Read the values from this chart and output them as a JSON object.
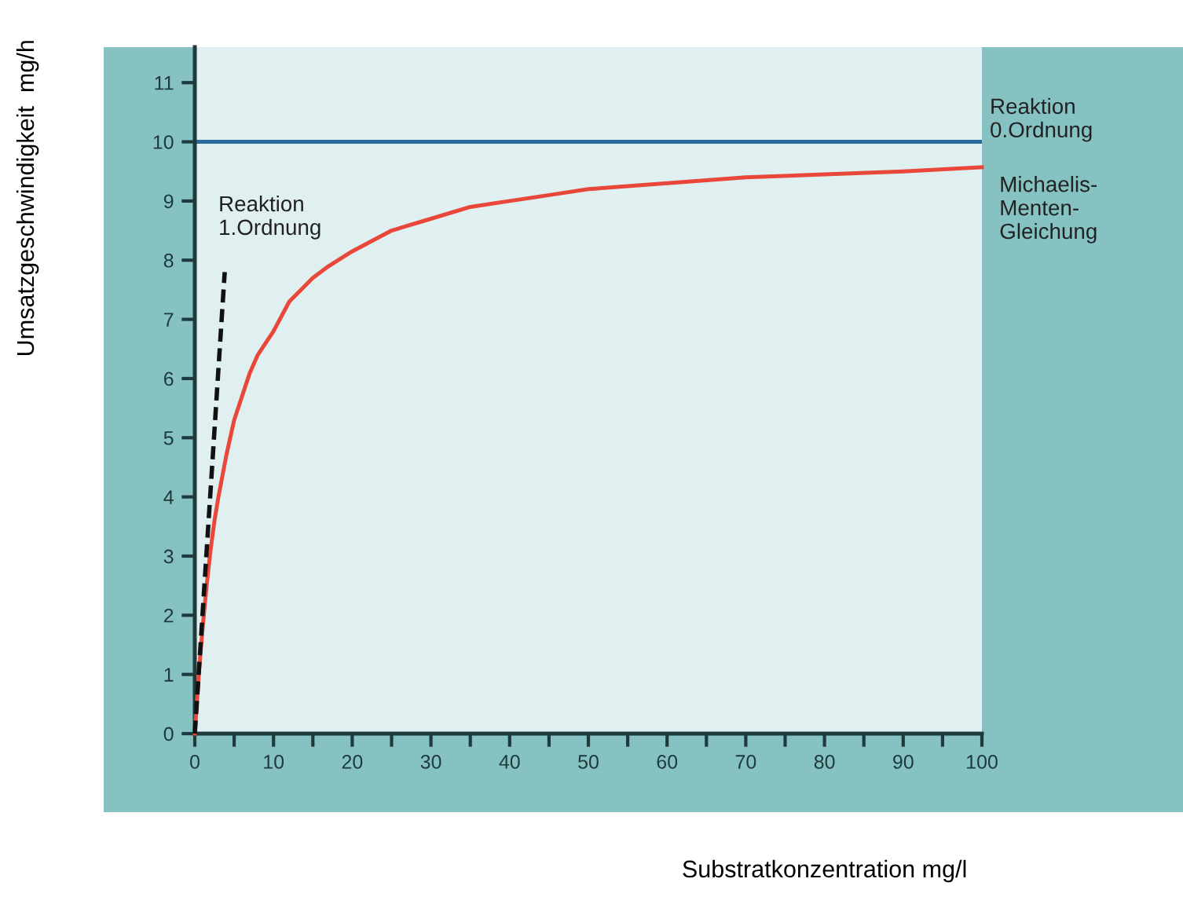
{
  "chart_data": {
    "type": "line",
    "xlabel": "Substratkonzentration mg/l",
    "ylabel": "Umsatzgeschwindigkeit  mg/h",
    "xlim": [
      0,
      100
    ],
    "ylim": [
      0,
      11.6
    ],
    "xticks": [
      0,
      {
        "value": 5,
        "label": null
      },
      10,
      {
        "value": 15,
        "label": null
      },
      20,
      {
        "value": 25,
        "label": null
      },
      30,
      {
        "value": 35,
        "label": null
      },
      40,
      {
        "value": 45,
        "label": null
      },
      50,
      {
        "value": 55,
        "label": null
      },
      60,
      {
        "value": 65,
        "label": null
      },
      70,
      {
        "value": 75,
        "label": null
      },
      80,
      {
        "value": 85,
        "label": null
      },
      90,
      {
        "value": 95,
        "label": null
      },
      100
    ],
    "yticks": [
      0,
      1,
      2,
      3,
      4,
      5,
      6,
      7,
      8,
      9,
      10,
      11
    ],
    "grid": false,
    "legend": false,
    "marker": "none",
    "series": [
      {
        "color": "#e8473a",
        "line_style": "solid",
        "x": [
          0,
          0.5,
          1,
          1.5,
          2,
          2.5,
          3,
          4,
          5,
          6,
          7,
          8,
          10,
          12,
          15,
          17,
          20,
          25,
          30,
          35,
          40,
          45,
          50,
          60,
          70,
          80,
          90,
          100
        ],
        "values": [
          0,
          1.0,
          1.8,
          2.5,
          3.1,
          3.6,
          4.0,
          4.7,
          5.3,
          5.7,
          6.1,
          6.4,
          6.8,
          7.3,
          7.7,
          7.9,
          8.15,
          8.5,
          8.7,
          8.9,
          9.0,
          9.1,
          9.2,
          9.3,
          9.4,
          9.45,
          9.5,
          9.57
        ]
      },
      {
        "color": "#111111",
        "line_style": "dashed",
        "x": [
          0,
          3.8
        ],
        "values": [
          0,
          7.8
        ]
      }
    ],
    "ref_lines": [
      {
        "axis": "y",
        "value": 10,
        "label": "Reaktion\n0.Ordnung",
        "color": "#2a6a9a"
      }
    ],
    "annotations": [
      "Reaktion\n1.Ordnung",
      {
        "text": "Michaelis-\nMenten-\nGleichung",
        "x": 100,
        "y": 9.57
      }
    ]
  }
}
